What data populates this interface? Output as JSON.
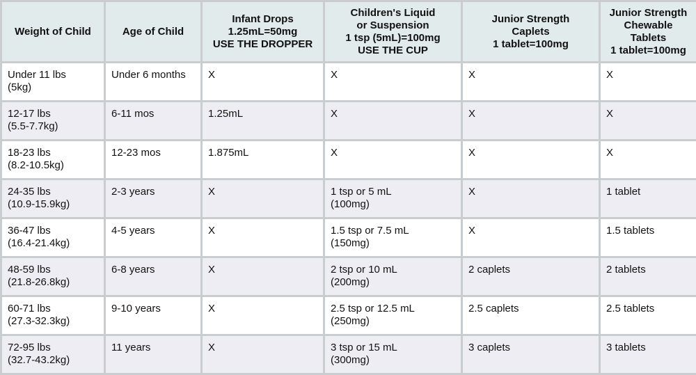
{
  "table": {
    "headers": [
      "Weight of Child",
      "Age of Child",
      "Infant Drops\n1.25mL=50mg\nUSE THE DROPPER",
      "Children's Liquid\nor Suspension\n1 tsp (5mL)=100mg\nUSE THE CUP",
      "Junior Strength\nCaplets\n1 tablet=100mg",
      "Junior Strength\nChewable\nTablets\n1 tablet=100mg"
    ],
    "rows": [
      [
        "Under 11 lbs\n(5kg)",
        "Under 6 months",
        "X",
        "X",
        "X",
        "X"
      ],
      [
        "12-17 lbs\n(5.5-7.7kg)",
        "6-11 mos",
        "1.25mL",
        "X",
        "X",
        "X"
      ],
      [
        "18-23 lbs\n(8.2-10.5kg)",
        "12-23 mos",
        "1.875mL",
        "X",
        "X",
        "X"
      ],
      [
        "24-35 lbs\n(10.9-15.9kg)",
        "2-3 years",
        "X",
        "1 tsp or 5 mL\n(100mg)",
        "X",
        "1 tablet"
      ],
      [
        "36-47 lbs\n(16.4-21.4kg)",
        "4-5 years",
        "X",
        "1.5 tsp or 7.5 mL\n(150mg)",
        "X",
        "1.5 tablets"
      ],
      [
        "48-59 lbs\n(21.8-26.8kg)",
        "6-8 years",
        "X",
        "2 tsp or 10 mL\n(200mg)",
        "2 caplets",
        "2 tablets"
      ],
      [
        "60-71 lbs\n(27.3-32.3kg)",
        "9-10 years",
        "X",
        "2.5 tsp or 12.5 mL\n(250mg)",
        "2.5 caplets",
        "2.5 tablets"
      ],
      [
        "72-95 lbs\n(32.7-43.2kg)",
        "11 years",
        "X",
        "3 tsp or 15 mL\n(300mg)",
        "3 caplets",
        "3 tablets"
      ]
    ]
  }
}
